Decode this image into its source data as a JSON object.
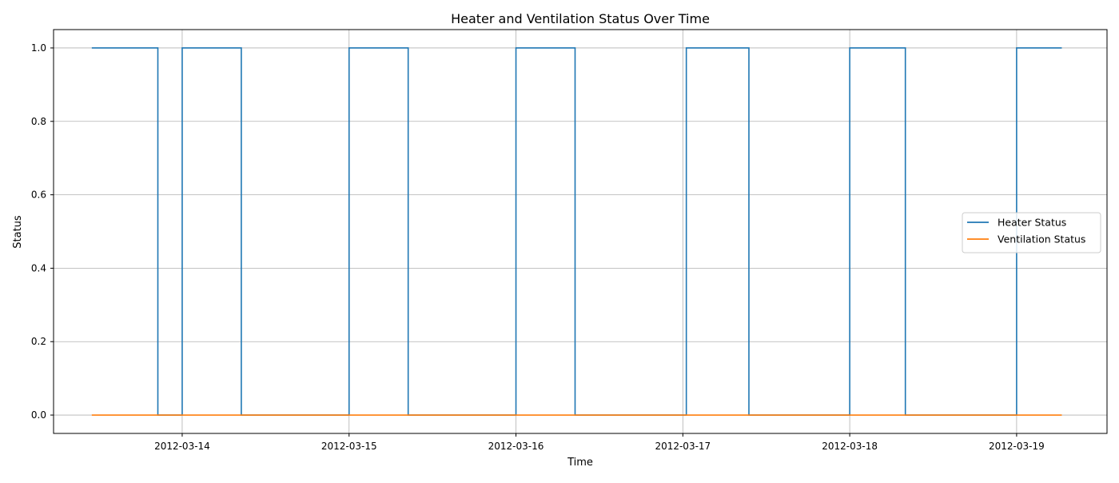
{
  "chart_data": {
    "type": "line",
    "title": "Heater and Ventilation Status Over Time",
    "xlabel": "Time",
    "ylabel": "Status",
    "x_type": "datetime",
    "xlim": [
      "2012-03-13T05:30",
      "2012-03-19T13:00"
    ],
    "ylim": [
      -0.05,
      1.05
    ],
    "x_ticks": [
      "2012-03-14",
      "2012-03-15",
      "2012-03-16",
      "2012-03-17",
      "2012-03-18",
      "2012-03-19"
    ],
    "y_ticks": [
      0.0,
      0.2,
      0.4,
      0.6,
      0.8,
      1.0
    ],
    "y_tick_labels": [
      "0.0",
      "0.2",
      "0.4",
      "0.6",
      "0.8",
      "1.0"
    ],
    "grid": true,
    "legend_position": "center-right",
    "step": true,
    "series": [
      {
        "name": "Heater Status",
        "color": "#1f77b4",
        "points": [
          [
            "2012-03-13T11:00",
            1
          ],
          [
            "2012-03-13T20:30",
            0
          ],
          [
            "2012-03-14T00:00",
            1
          ],
          [
            "2012-03-14T08:30",
            0
          ],
          [
            "2012-03-15T00:00",
            1
          ],
          [
            "2012-03-15T08:30",
            0
          ],
          [
            "2012-03-16T00:00",
            1
          ],
          [
            "2012-03-16T08:30",
            0
          ],
          [
            "2012-03-17T00:30",
            1
          ],
          [
            "2012-03-17T09:30",
            0
          ],
          [
            "2012-03-18T00:00",
            1
          ],
          [
            "2012-03-18T08:00",
            0
          ],
          [
            "2012-03-19T00:00",
            1
          ],
          [
            "2012-03-19T06:30",
            1
          ]
        ]
      },
      {
        "name": "Ventilation Status",
        "color": "#ff7f0e",
        "points": [
          [
            "2012-03-13T11:00",
            0
          ],
          [
            "2012-03-19T06:30",
            0
          ]
        ]
      }
    ]
  }
}
